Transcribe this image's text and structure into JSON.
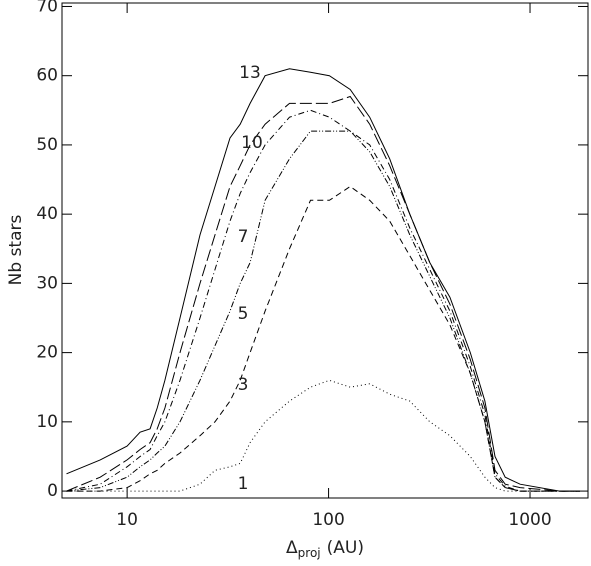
{
  "chart_data": {
    "type": "line",
    "x_label": {
      "main": "Δ",
      "sub": "proj",
      "unit": "(AU)"
    },
    "y_label": "Nb stars",
    "log_x": true,
    "xlim": [
      4.75,
      1940
    ],
    "xticks": [
      10,
      100,
      1000
    ],
    "ylim": [
      -1,
      70.5
    ],
    "yticks": [
      0,
      10,
      20,
      30,
      40,
      50,
      60,
      70
    ],
    "x": [
      5,
      7.35,
      10,
      11.6,
      13,
      14.1,
      15.4,
      18.3,
      23,
      27.3,
      32.4,
      36.4,
      40.8,
      48.4,
      64,
      81.3,
      101,
      128,
      160,
      201,
      253,
      318,
      400,
      505,
      597,
      670,
      753,
      893,
      1400,
      1770
    ],
    "series": [
      {
        "name": "13",
        "color": "#000000",
        "dash": "none",
        "values": [
          2.5,
          4.5,
          6.5,
          8.5,
          9,
          12,
          16,
          25,
          37,
          44,
          51,
          53,
          56,
          60,
          61,
          60.5,
          60,
          58,
          54,
          48,
          40,
          33,
          28,
          20,
          13,
          5,
          2,
          1,
          0,
          0
        ]
      },
      {
        "name": "10",
        "color": "#000000",
        "dash": "12 4",
        "values": [
          0,
          2,
          4.5,
          6,
          7,
          9,
          12,
          20,
          30,
          37,
          44,
          47,
          50,
          53,
          56,
          56,
          56,
          57,
          53,
          47,
          40,
          33,
          27,
          19,
          12,
          3,
          1,
          0.5,
          0,
          0
        ]
      },
      {
        "name": "7",
        "color": "#000000",
        "dash": "6 3 1 3",
        "values": [
          0,
          1,
          3.5,
          5,
          6,
          8,
          10,
          16,
          25,
          32,
          39,
          43,
          46,
          50,
          54,
          55,
          54,
          52,
          50,
          45,
          38,
          32,
          26,
          18,
          11,
          2.5,
          0.7,
          0,
          0,
          0
        ]
      },
      {
        "name": "5",
        "color": "#000000",
        "dash": "6 2 1 2 1 2",
        "values": [
          0,
          0.5,
          2,
          3.5,
          4.5,
          5.5,
          6.5,
          10,
          16,
          21,
          26,
          30,
          33,
          42,
          48,
          52,
          52,
          52,
          49,
          44,
          37,
          31,
          25,
          17,
          10,
          2,
          0.5,
          0,
          0,
          0
        ]
      },
      {
        "name": "3",
        "color": "#000000",
        "dash": "6 4",
        "values": [
          0,
          0,
          0.5,
          1.5,
          2.5,
          3,
          4,
          5.5,
          8,
          10,
          13,
          16,
          20,
          26,
          35,
          42,
          42,
          44,
          42,
          39,
          34,
          29,
          24,
          17,
          10,
          2,
          0.5,
          0,
          0,
          0
        ]
      },
      {
        "name": "1",
        "color": "#000000",
        "dash": "1 3",
        "values": [
          0,
          0,
          0,
          0,
          0,
          0,
          0,
          0,
          1,
          3,
          3.5,
          4,
          7,
          10,
          13,
          15,
          16,
          15,
          15.5,
          14,
          13,
          10,
          8,
          5,
          2,
          0.5,
          0,
          0,
          0,
          0
        ]
      }
    ]
  }
}
